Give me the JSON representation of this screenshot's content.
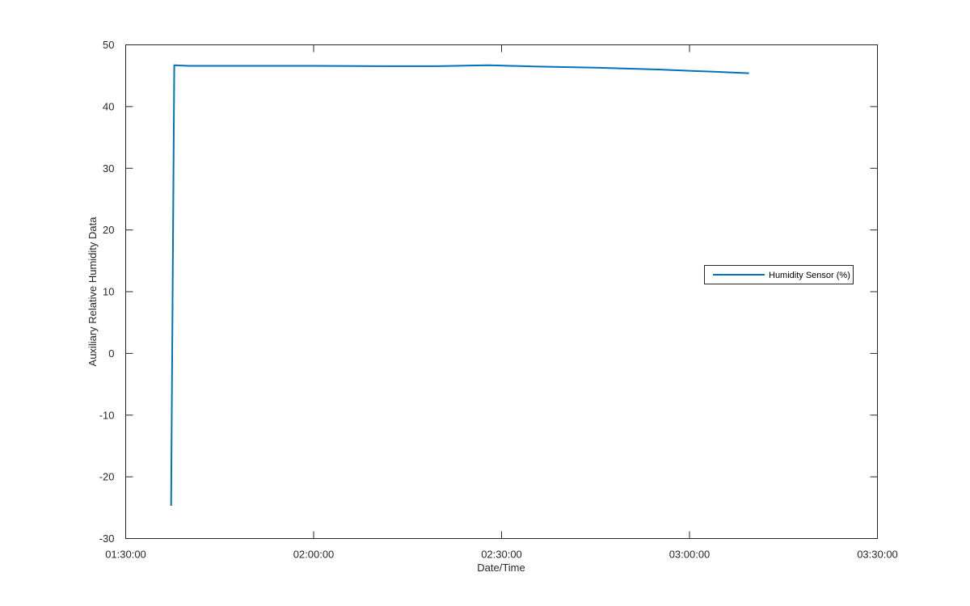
{
  "chart_data": {
    "type": "line",
    "title": "",
    "xlabel": "Date/Time",
    "ylabel": "Auxiliary Relative Humidity Data",
    "x_axis": {
      "ticks": [
        "01:30:00",
        "02:00:00",
        "02:30:00",
        "03:00:00",
        "03:30:00"
      ],
      "range": [
        "01:30:00",
        "03:30:00"
      ]
    },
    "y_axis": {
      "ticks": [
        -30,
        -20,
        -10,
        0,
        10,
        20,
        30,
        40,
        50
      ],
      "range": [
        -30,
        50
      ]
    },
    "grid": false,
    "legend": {
      "placement": "right",
      "entries": [
        "Humidity Sensor (%)"
      ]
    },
    "series": [
      {
        "name": "Humidity Sensor (%)",
        "color": "#0072bd",
        "points": [
          [
            "01:37:15",
            -24.7
          ],
          [
            "01:37:45",
            46.7
          ],
          [
            "01:40:00",
            46.6
          ],
          [
            "01:50:00",
            46.6
          ],
          [
            "02:00:00",
            46.6
          ],
          [
            "02:10:00",
            46.55
          ],
          [
            "02:20:00",
            46.55
          ],
          [
            "02:25:00",
            46.65
          ],
          [
            "02:28:00",
            46.7
          ],
          [
            "02:35:00",
            46.5
          ],
          [
            "02:45:00",
            46.3
          ],
          [
            "02:55:00",
            46.0
          ],
          [
            "03:00:00",
            45.8
          ],
          [
            "03:05:00",
            45.6
          ],
          [
            "03:09:30",
            45.4
          ]
        ]
      }
    ]
  }
}
